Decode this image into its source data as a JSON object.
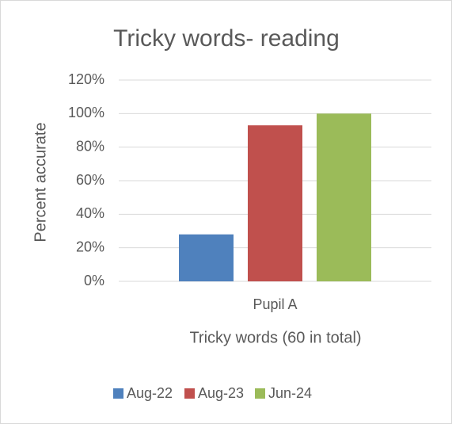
{
  "chart_data": {
    "type": "bar",
    "title": "Tricky words- reading",
    "x_label": "Tricky words (60 in total)",
    "y_label": "Percent accurate",
    "categories": [
      "Pupil A"
    ],
    "series": [
      {
        "name": "Aug-22",
        "color": "#4f81bd",
        "values": [
          28
        ]
      },
      {
        "name": "Aug-23",
        "color": "#c0504d",
        "values": [
          93
        ]
      },
      {
        "name": "Jun-24",
        "color": "#9bbb59",
        "values": [
          100
        ]
      }
    ],
    "ylim": [
      0,
      120
    ],
    "yticks": [
      {
        "value": 0,
        "label": "0%"
      },
      {
        "value": 20,
        "label": "20%"
      },
      {
        "value": 40,
        "label": "40%"
      },
      {
        "value": 60,
        "label": "60%"
      },
      {
        "value": 80,
        "label": "80%"
      },
      {
        "value": 100,
        "label": "100%"
      },
      {
        "value": 120,
        "label": "120%"
      }
    ],
    "grid": true,
    "legend": "bottom"
  }
}
